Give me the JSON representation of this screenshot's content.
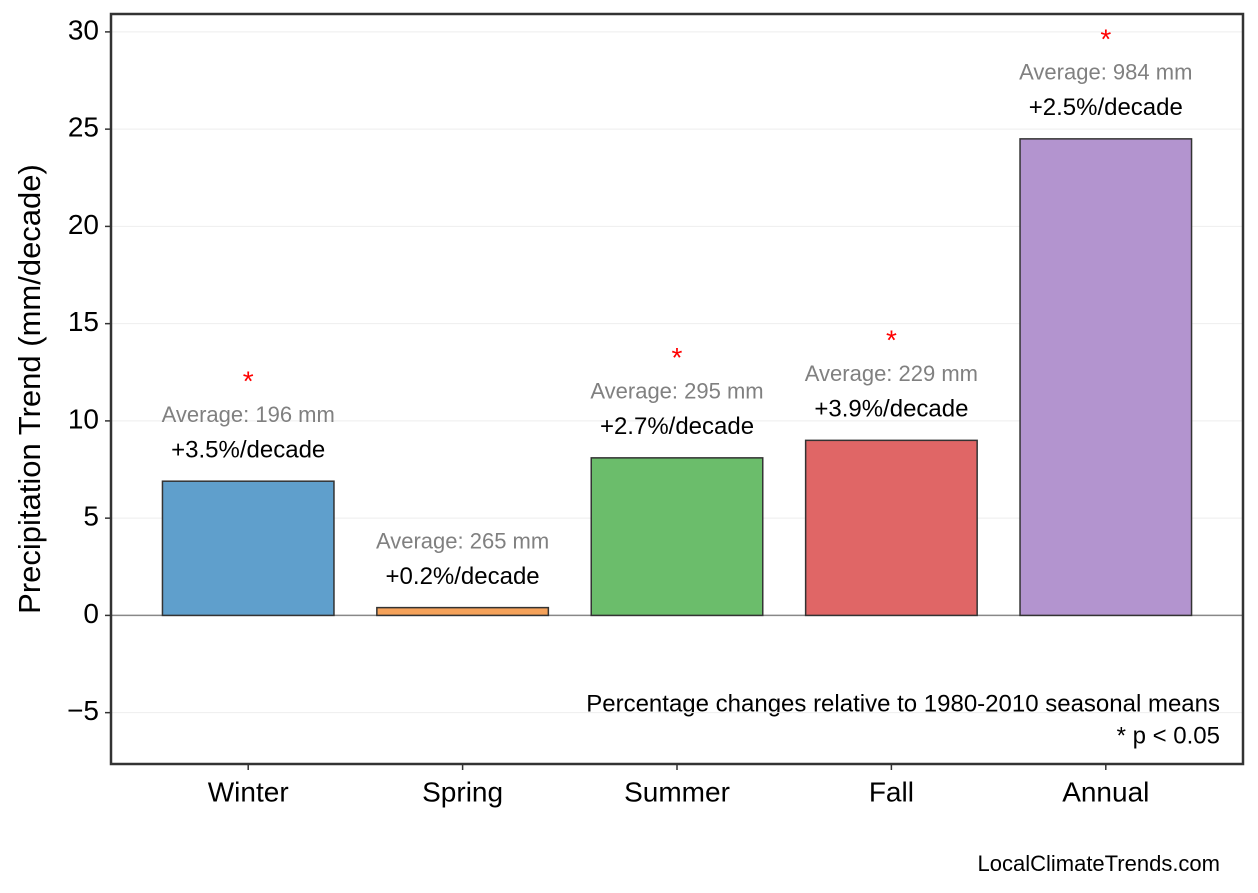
{
  "chart_data": {
    "type": "bar",
    "y_label": "Precipitation Trend (mm/decade)",
    "categories": [
      "Winter",
      "Spring",
      "Summer",
      "Fall",
      "Annual"
    ],
    "values": [
      6.9,
      0.4,
      8.1,
      9.0,
      24.5
    ],
    "colors": [
      "#5f9fcc",
      "#f5a25a",
      "#6bbd6b",
      "#e06666",
      "#b394cf"
    ],
    "change_labels": [
      "+3.5%/decade",
      "+0.2%/decade",
      "+2.7%/decade",
      "+3.9%/decade",
      "+2.5%/decade"
    ],
    "average_labels": [
      "Average: 196 mm",
      "Average: 265 mm",
      "Average: 295 mm",
      "Average: 229 mm",
      "Average: 984 mm"
    ],
    "significance": [
      "*",
      null,
      "*",
      "*",
      "*"
    ],
    "ylim": [
      -7.64,
      30.92
    ],
    "yticks": [
      {
        "value": -5,
        "label": "−5"
      },
      0,
      5,
      10,
      15,
      20,
      25,
      30
    ],
    "grid": true,
    "annotations": [
      "Percentage changes relative to 1980-2010 seasonal means",
      "* p < 0.05"
    ],
    "footer": "LocalClimateTrends.com"
  }
}
